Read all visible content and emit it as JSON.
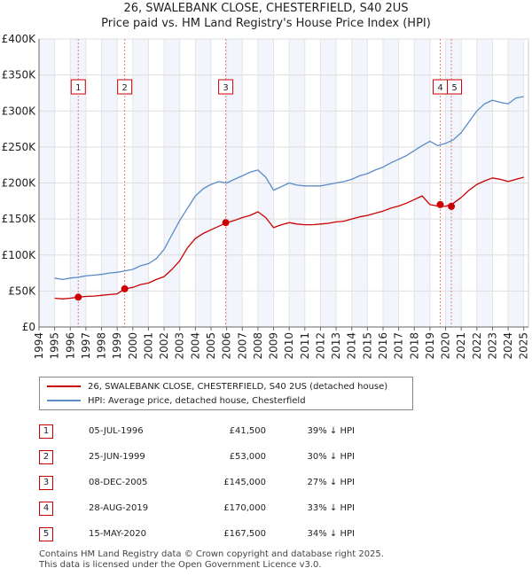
{
  "title_line1": "26, SWALEBANK CLOSE, CHESTERFIELD, S40 2US",
  "title_line2": "Price paid vs. HM Land Registry's House Price Index (HPI)",
  "chart_data": {
    "type": "line",
    "title": "Price paid vs. HM Land Registry's House Price Index (HPI)",
    "xlabel": "",
    "ylabel": "",
    "xlim": [
      1994.0,
      2025.3
    ],
    "ylim": [
      0,
      400000
    ],
    "y_ticks": [
      {
        "value": 0,
        "label": "£0"
      },
      {
        "value": 50000,
        "label": "£50K"
      },
      {
        "value": 100000,
        "label": "£100K"
      },
      {
        "value": 150000,
        "label": "£150K"
      },
      {
        "value": 200000,
        "label": "£200K"
      },
      {
        "value": 250000,
        "label": "£250K"
      },
      {
        "value": 300000,
        "label": "£300K"
      },
      {
        "value": 350000,
        "label": "£350K"
      },
      {
        "value": 400000,
        "label": "£400K"
      }
    ],
    "x_ticks": [
      "1994",
      "1995",
      "1996",
      "1997",
      "1998",
      "1999",
      "2000",
      "2001",
      "2002",
      "2003",
      "2004",
      "2005",
      "2006",
      "2007",
      "2008",
      "2009",
      "2010",
      "2011",
      "2012",
      "2013",
      "2014",
      "2015",
      "2016",
      "2017",
      "2018",
      "2019",
      "2020",
      "2021",
      "2022",
      "2023",
      "2024",
      "2025"
    ],
    "grid": true,
    "series": [
      {
        "name": "HPI: Average price, detached house, Chesterfield",
        "color": "#5b8cc8",
        "x": [
          1995.0,
          1995.5,
          1996.0,
          1996.5,
          1997.0,
          1997.5,
          1998.0,
          1998.5,
          1999.0,
          1999.5,
          2000.0,
          2000.5,
          2001.0,
          2001.5,
          2002.0,
          2002.5,
          2003.0,
          2003.5,
          2004.0,
          2004.5,
          2005.0,
          2005.5,
          2006.0,
          2006.5,
          2007.0,
          2007.5,
          2008.0,
          2008.5,
          2009.0,
          2009.5,
          2010.0,
          2010.5,
          2011.0,
          2011.5,
          2012.0,
          2012.5,
          2013.0,
          2013.5,
          2014.0,
          2014.5,
          2015.0,
          2015.5,
          2016.0,
          2016.5,
          2017.0,
          2017.5,
          2018.0,
          2018.5,
          2019.0,
          2019.5,
          2020.0,
          2020.5,
          2021.0,
          2021.5,
          2022.0,
          2022.5,
          2023.0,
          2023.5,
          2024.0,
          2024.5,
          2025.0
        ],
        "values": [
          68000,
          66000,
          68000,
          69000,
          71000,
          72000,
          73000,
          75000,
          76000,
          78000,
          80000,
          85000,
          88000,
          95000,
          108000,
          128000,
          148000,
          165000,
          182000,
          192000,
          198000,
          202000,
          200000,
          205000,
          210000,
          215000,
          218000,
          208000,
          190000,
          195000,
          200000,
          197000,
          196000,
          196000,
          196000,
          198000,
          200000,
          202000,
          205000,
          210000,
          213000,
          218000,
          222000,
          228000,
          233000,
          238000,
          245000,
          252000,
          258000,
          252000,
          255000,
          260000,
          270000,
          285000,
          300000,
          310000,
          315000,
          312000,
          310000,
          318000,
          320000
        ]
      },
      {
        "name": "26, SWALEBANK CLOSE, CHESTERFIELD, S40 2US (detached house)",
        "color": "#cc0000",
        "x": [
          1995.0,
          1995.5,
          1996.0,
          1996.5,
          1997.0,
          1997.5,
          1998.0,
          1998.5,
          1999.0,
          1999.5,
          2000.0,
          2000.5,
          2001.0,
          2001.5,
          2002.0,
          2002.5,
          2003.0,
          2003.5,
          2004.0,
          2004.5,
          2005.0,
          2005.5,
          2006.0,
          2006.5,
          2007.0,
          2007.5,
          2008.0,
          2008.5,
          2009.0,
          2009.5,
          2010.0,
          2010.5,
          2011.0,
          2011.5,
          2012.0,
          2012.5,
          2013.0,
          2013.5,
          2014.0,
          2014.5,
          2015.0,
          2015.5,
          2016.0,
          2016.5,
          2017.0,
          2017.5,
          2018.0,
          2018.5,
          2019.0,
          2019.5,
          2020.0,
          2020.5,
          2021.0,
          2021.5,
          2022.0,
          2022.5,
          2023.0,
          2023.5,
          2024.0,
          2024.5,
          2025.0
        ],
        "values": [
          40000,
          39000,
          40000,
          41500,
          42500,
          43000,
          44000,
          45000,
          46000,
          53000,
          55000,
          59000,
          61000,
          66000,
          70000,
          80000,
          92000,
          110000,
          123000,
          130000,
          135000,
          140000,
          145000,
          148000,
          152000,
          155000,
          160000,
          152000,
          138000,
          142000,
          145000,
          143000,
          142000,
          142000,
          143000,
          144000,
          146000,
          147000,
          150000,
          153000,
          155000,
          158000,
          161000,
          165000,
          168000,
          172000,
          177000,
          182000,
          170000,
          168000,
          167500,
          172000,
          180000,
          190000,
          198000,
          203000,
          207000,
          205000,
          202000,
          205000,
          208000
        ]
      }
    ],
    "markers": [
      {
        "label": "1",
        "x": 1996.51,
        "value": 41500
      },
      {
        "label": "2",
        "x": 1999.48,
        "value": 53000
      },
      {
        "label": "3",
        "x": 2005.94,
        "value": 145000
      },
      {
        "label": "4",
        "x": 2019.66,
        "value": 170000
      },
      {
        "label": "5",
        "x": 2020.37,
        "value": 167500
      }
    ]
  },
  "legend": [
    {
      "label": "26, SWALEBANK CLOSE, CHESTERFIELD, S40 2US (detached house)",
      "color": "#cc0000"
    },
    {
      "label": "HPI: Average price, detached house, Chesterfield",
      "color": "#5b8cc8"
    }
  ],
  "transactions": [
    {
      "num": "1",
      "date": "05-JUL-1996",
      "price": "£41,500",
      "hpi": "39% ↓ HPI"
    },
    {
      "num": "2",
      "date": "25-JUN-1999",
      "price": "£53,000",
      "hpi": "30% ↓ HPI"
    },
    {
      "num": "3",
      "date": "08-DEC-2005",
      "price": "£145,000",
      "hpi": "27% ↓ HPI"
    },
    {
      "num": "4",
      "date": "28-AUG-2019",
      "price": "£170,000",
      "hpi": "33% ↓ HPI"
    },
    {
      "num": "5",
      "date": "15-MAY-2020",
      "price": "£167,500",
      "hpi": "34% ↓ HPI"
    }
  ],
  "footer_line1": "Contains HM Land Registry data © Crown copyright and database right 2025.",
  "footer_line2": "This data is licensed under the Open Government Licence v3.0."
}
